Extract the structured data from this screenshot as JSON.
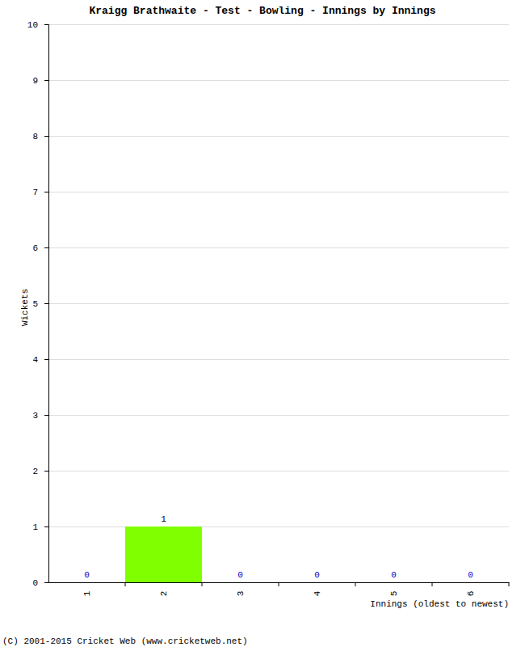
{
  "chart_data": {
    "type": "bar",
    "title": "Kraigg Brathwaite - Test - Bowling - Innings by Innings",
    "x_label": "Innings (oldest to newest)",
    "y_label": "Wickets",
    "footer": "(C) 2001-2015 Cricket Web (www.cricketweb.net)",
    "categories": [
      "1",
      "2",
      "3",
      "4",
      "5",
      "6"
    ],
    "values": [
      0,
      1,
      0,
      0,
      0,
      0
    ],
    "color": "#80ff00",
    "ylim": [
      0,
      10
    ],
    "yticks": [
      0,
      1,
      2,
      3,
      4,
      5,
      6,
      7,
      8,
      9,
      10
    ],
    "grid": true,
    "data_labels": true
  }
}
